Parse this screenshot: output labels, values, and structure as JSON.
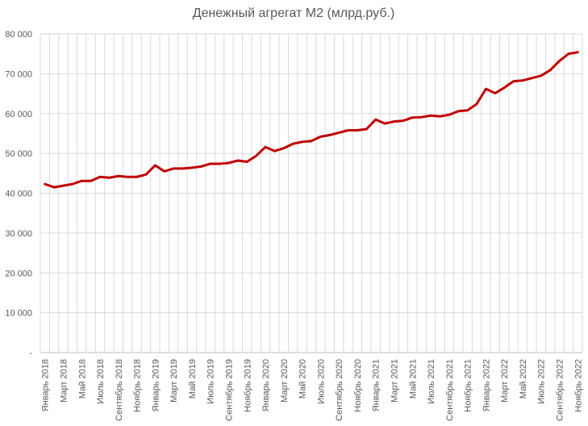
{
  "chart_data": {
    "type": "line",
    "title": "Денежный агрегат М2 (млрд.руб.)",
    "color": "#c00000",
    "ylim": [
      0,
      80000
    ],
    "yticks": [
      0,
      10000,
      20000,
      30000,
      40000,
      50000,
      60000,
      70000,
      80000
    ],
    "ytick_labels": [
      "-",
      "10 000",
      "20 000",
      "30 000",
      "40 000",
      "50 000",
      "60 000",
      "70 000",
      "80 000"
    ],
    "categories": [
      "Январь 2018",
      "Февраль 2018",
      "Март 2018",
      "Апрель 2018",
      "Май 2018",
      "Июнь 2018",
      "Июль 2018",
      "Август 2018",
      "Сентябрь 2018",
      "Октябрь 2018",
      "Ноябрь 2018",
      "Декабрь 2018",
      "Январь 2019",
      "Февраль 2019",
      "Март 2019",
      "Апрель 2019",
      "Май 2019",
      "Июнь 2019",
      "Июль 2019",
      "Август 2019",
      "Сентябрь 2019",
      "Октябрь 2019",
      "Ноябрь 2019",
      "Декабрь 2019",
      "Январь 2020",
      "Февраль 2020",
      "Март 2020",
      "Апрель 2020",
      "Май 2020",
      "Июнь 2020",
      "Июль 2020",
      "Август 2020",
      "Сентябрь 2020",
      "Октябрь 2020",
      "Ноябрь 2020",
      "Декабрь 2020",
      "Январь 2021",
      "Февраль 2021",
      "Март 2021",
      "Апрель 2021",
      "Май 2021",
      "Июнь 2021",
      "Июль 2021",
      "Август 2021",
      "Сентябрь 2021",
      "Октябрь 2021",
      "Ноябрь 2021",
      "Декабрь 2021",
      "Январь 2022",
      "Февраль 2022",
      "Март 2022",
      "Апрель 2022",
      "Май 2022",
      "Июнь 2022",
      "Июль 2022",
      "Август 2022",
      "Сентябрь 2022",
      "Октябрь 2022",
      "Ноябрь 2022"
    ],
    "xtick_labels": [
      "Январь 2018",
      "",
      "Март 2018",
      "",
      "Май 2018",
      "",
      "Июль 2018",
      "",
      "Сентябрь 2018",
      "",
      "Ноябрь 2018",
      "",
      "Январь 2019",
      "",
      "Март 2019",
      "",
      "Май 2019",
      "",
      "Июль 2019",
      "",
      "Сентябрь 2019",
      "",
      "Ноябрь 2019",
      "",
      "Январь 2020",
      "",
      "Март 2020",
      "",
      "Май 2020",
      "",
      "Июль 2020",
      "",
      "Сентябрь 2020",
      "",
      "Ноябрь 2020",
      "",
      "Январь 2021",
      "",
      "Март 2021",
      "",
      "Май 2021",
      "",
      "Июль 2021",
      "",
      "Сентябрь 2021",
      "",
      "Ноябрь 2021",
      "",
      "Январь 2022",
      "",
      "Март 2022",
      "",
      "Май 2022",
      "",
      "Июль 2022",
      "",
      "Сентябрь 2022",
      "",
      "Ноябрь 2022"
    ],
    "series": [
      {
        "values": [
          42300,
          41500,
          41900,
          42300,
          43100,
          43100,
          44100,
          43900,
          44300,
          44100,
          44100,
          44700,
          47000,
          45500,
          46200,
          46200,
          46400,
          46700,
          47400,
          47400,
          47600,
          48200,
          47900,
          49400,
          51600,
          50600,
          51300,
          52400,
          52900,
          53100,
          54200,
          54600,
          55200,
          55800,
          55800,
          56100,
          58500,
          57500,
          58000,
          58200,
          59000,
          59100,
          59500,
          59300,
          59700,
          60600,
          60800,
          62400,
          66200,
          65100,
          66500,
          68100,
          68300,
          68900,
          69500,
          70900,
          73200,
          75000,
          75400
        ]
      }
    ]
  }
}
